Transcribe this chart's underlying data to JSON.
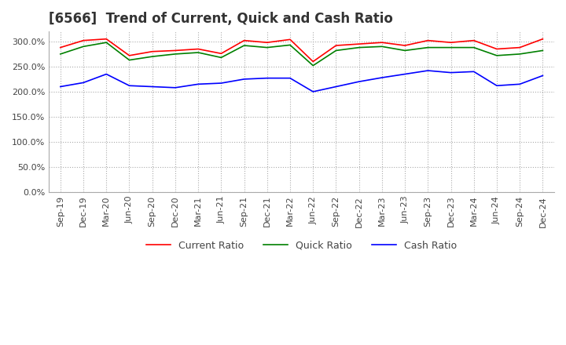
{
  "title": "[6566]  Trend of Current, Quick and Cash Ratio",
  "x_labels": [
    "Sep-19",
    "Dec-19",
    "Mar-20",
    "Jun-20",
    "Sep-20",
    "Dec-20",
    "Mar-21",
    "Jun-21",
    "Sep-21",
    "Dec-21",
    "Mar-22",
    "Jun-22",
    "Sep-22",
    "Dec-22",
    "Mar-23",
    "Jun-23",
    "Sep-23",
    "Dec-23",
    "Mar-24",
    "Jun-24",
    "Sep-24",
    "Dec-24"
  ],
  "current_ratio": [
    2.88,
    3.02,
    3.05,
    2.72,
    2.8,
    2.82,
    2.85,
    2.76,
    3.02,
    2.98,
    3.04,
    2.6,
    2.92,
    2.95,
    2.98,
    2.92,
    3.02,
    2.98,
    3.02,
    2.85,
    2.88,
    3.05
  ],
  "quick_ratio": [
    2.75,
    2.9,
    2.98,
    2.63,
    2.7,
    2.75,
    2.78,
    2.68,
    2.92,
    2.88,
    2.93,
    2.52,
    2.82,
    2.88,
    2.9,
    2.82,
    2.88,
    2.88,
    2.88,
    2.72,
    2.75,
    2.82
  ],
  "cash_ratio": [
    2.1,
    2.18,
    2.35,
    2.12,
    2.1,
    2.08,
    2.15,
    2.17,
    2.25,
    2.27,
    2.27,
    2.0,
    2.1,
    2.2,
    2.28,
    2.35,
    2.42,
    2.38,
    2.4,
    2.12,
    2.15,
    2.32
  ],
  "current_color": "#FF0000",
  "quick_color": "#008000",
  "cash_color": "#0000FF",
  "ylim": [
    0.0,
    3.2
  ],
  "yticks": [
    0.0,
    0.5,
    1.0,
    1.5,
    2.0,
    2.5,
    3.0
  ],
  "background_color": "#ffffff",
  "grid_color": "#aaaaaa",
  "title_fontsize": 12,
  "tick_fontsize": 8,
  "legend_fontsize": 9
}
